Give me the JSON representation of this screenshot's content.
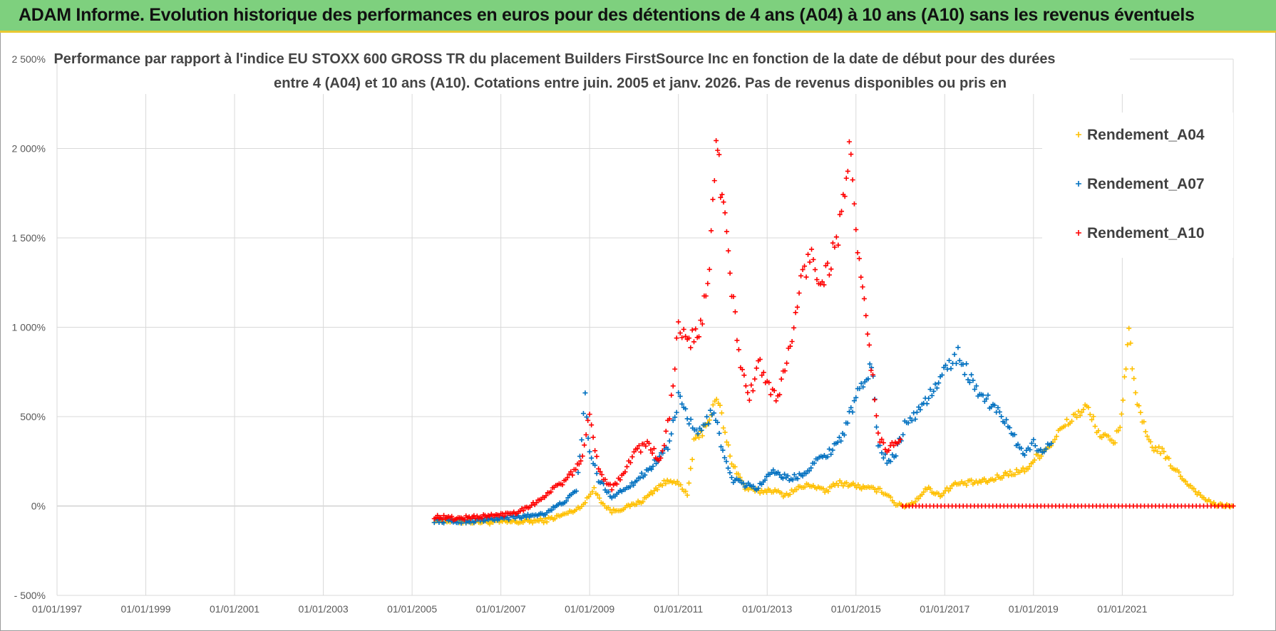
{
  "header": {
    "title": "ADAM Informe. Evolution historique des performances en euros pour des détentions de 4 ans (A04) à 10 ans (A10) sans les revenus éventuels"
  },
  "chart_data": {
    "type": "scatter",
    "title_line1": "Performance par rapport à l'indice EU STOXX 600 GROSS TR  du placement Builders FirstSource Inc en fonction de la date de début pour des durées",
    "title_line2": "entre 4 (A04) et 10 ans (A10). Cotations entre juin. 2005 et janv. 2026. Pas de revenus disponibles ou pris en",
    "xlabel": "",
    "ylabel": "",
    "xlim": [
      1997.0,
      2023.5
    ],
    "ylim": [
      -500,
      2500
    ],
    "x_ticks": [
      "01/01/1997",
      "01/01/1999",
      "01/01/2001",
      "01/01/2003",
      "01/01/2005",
      "01/01/2007",
      "01/01/2009",
      "01/01/2011",
      "01/01/2013",
      "01/01/2015",
      "01/01/2017",
      "01/01/2019",
      "01/01/2021"
    ],
    "x_tick_values": [
      1997,
      1999,
      2001,
      2003,
      2005,
      2007,
      2009,
      2011,
      2013,
      2015,
      2017,
      2019,
      2021
    ],
    "y_ticks": [
      "- 500%",
      "0%",
      "500%",
      "1 000%",
      "1 500%",
      "2 000%",
      "2 500%"
    ],
    "y_tick_values": [
      -500,
      0,
      500,
      1000,
      1500,
      2000,
      2500
    ],
    "grid": true,
    "legend_position": "top-right",
    "marker": "+",
    "series": [
      {
        "name": "Rendement_A04",
        "color": "#ffc000",
        "x": [
          2005.5,
          2006.0,
          2006.5,
          2007.0,
          2007.5,
          2008.0,
          2008.4,
          2008.7,
          2008.9,
          2009.1,
          2009.3,
          2009.5,
          2009.8,
          2010.2,
          2010.6,
          2010.9,
          2011.2,
          2011.35,
          2011.5,
          2011.7,
          2011.9,
          2012.05,
          2012.2,
          2012.5,
          2012.8,
          2013.1,
          2013.4,
          2013.7,
          2014.0,
          2014.3,
          2014.6,
          2014.9,
          2015.2,
          2015.5,
          2015.7,
          2015.9,
          2016.1,
          2016.3,
          2016.6,
          2016.9,
          2017.2,
          2017.6,
          2018.0,
          2018.4,
          2018.8,
          2019.1,
          2019.4,
          2019.6,
          2019.9,
          2020.2,
          2020.5,
          2020.8,
          2020.95,
          2021.05,
          2021.15,
          2021.3,
          2021.6,
          2021.9,
          2022.2,
          2022.5,
          2022.8,
          2023.1,
          2023.5
        ],
        "y": [
          -80,
          -85,
          -88,
          -90,
          -88,
          -80,
          -50,
          -20,
          20,
          100,
          10,
          -30,
          -10,
          30,
          120,
          150,
          60,
          350,
          400,
          500,
          600,
          400,
          250,
          100,
          80,
          90,
          60,
          100,
          120,
          80,
          130,
          120,
          100,
          90,
          70,
          10,
          0,
          20,
          100,
          60,
          120,
          130,
          140,
          180,
          200,
          280,
          350,
          420,
          500,
          550,
          400,
          350,
          450,
          700,
          1000,
          600,
          350,
          300,
          200,
          120,
          50,
          5,
          0
        ]
      },
      {
        "name": "Rendement_A07",
        "color": "#0070c0",
        "x": [
          2005.5,
          2006.0,
          2006.5,
          2007.0,
          2007.5,
          2008.0,
          2008.4,
          2008.7,
          2008.9,
          2009.0,
          2009.2,
          2009.5,
          2009.8,
          2010.1,
          2010.5,
          2010.8,
          2011.0,
          2011.2,
          2011.4,
          2011.6,
          2011.8,
          2012.0,
          2012.2,
          2012.5,
          2012.8,
          2013.1,
          2013.5,
          2013.8,
          2014.1,
          2014.4,
          2014.7,
          2015.0,
          2015.2,
          2015.35,
          2015.5,
          2015.7,
          2015.9,
          2016.1,
          2016.3,
          2016.6,
          2016.9,
          2017.1,
          2017.3,
          2017.6,
          2017.9,
          2018.2,
          2018.5,
          2018.8,
          2019.0,
          2019.2,
          2019.4
        ],
        "y": [
          -80,
          -85,
          -80,
          -70,
          -60,
          -40,
          20,
          80,
          600,
          300,
          150,
          50,
          100,
          150,
          250,
          350,
          600,
          500,
          400,
          450,
          550,
          300,
          150,
          120,
          100,
          200,
          150,
          180,
          250,
          300,
          400,
          600,
          700,
          800,
          350,
          250,
          300,
          450,
          500,
          600,
          700,
          800,
          850,
          700,
          600,
          550,
          400,
          300,
          350,
          300,
          350
        ]
      },
      {
        "name": "Rendement_A10",
        "color": "#ff0000",
        "x": [
          2005.5,
          2006.0,
          2006.5,
          2007.0,
          2007.4,
          2007.8,
          2008.2,
          2008.5,
          2008.8,
          2009.0,
          2009.2,
          2009.5,
          2009.8,
          2010.0,
          2010.3,
          2010.6,
          2010.8,
          2011.0,
          2011.2,
          2011.5,
          2011.7,
          2011.85,
          2011.95,
          2012.05,
          2012.2,
          2012.4,
          2012.6,
          2012.8,
          2013.0,
          2013.2,
          2013.4,
          2013.6,
          2013.8,
          2014.0,
          2014.2,
          2014.4,
          2014.6,
          2014.75,
          2014.85,
          2015.0,
          2015.15,
          2015.3,
          2015.5,
          2015.7,
          2015.85,
          2016.0,
          2016.05,
          2016.5,
          2017.0,
          2017.5,
          2018.0,
          2018.5,
          2019.0,
          2019.5,
          2020.0,
          2020.5,
          2021.0,
          2021.5,
          2022.0,
          2022.5,
          2023.0,
          2023.5
        ],
        "y": [
          -60,
          -70,
          -60,
          -50,
          -30,
          20,
          100,
          150,
          250,
          500,
          200,
          100,
          200,
          300,
          350,
          250,
          500,
          1000,
          900,
          1000,
          1300,
          2100,
          1800,
          1600,
          1200,
          800,
          600,
          800,
          700,
          600,
          750,
          1000,
          1300,
          1400,
          1250,
          1350,
          1500,
          1800,
          2000,
          1500,
          1200,
          900,
          400,
          300,
          350,
          350,
          0,
          0,
          0,
          0,
          0,
          0,
          0,
          0,
          0,
          0,
          0,
          0,
          0,
          0,
          0,
          0
        ]
      }
    ]
  }
}
